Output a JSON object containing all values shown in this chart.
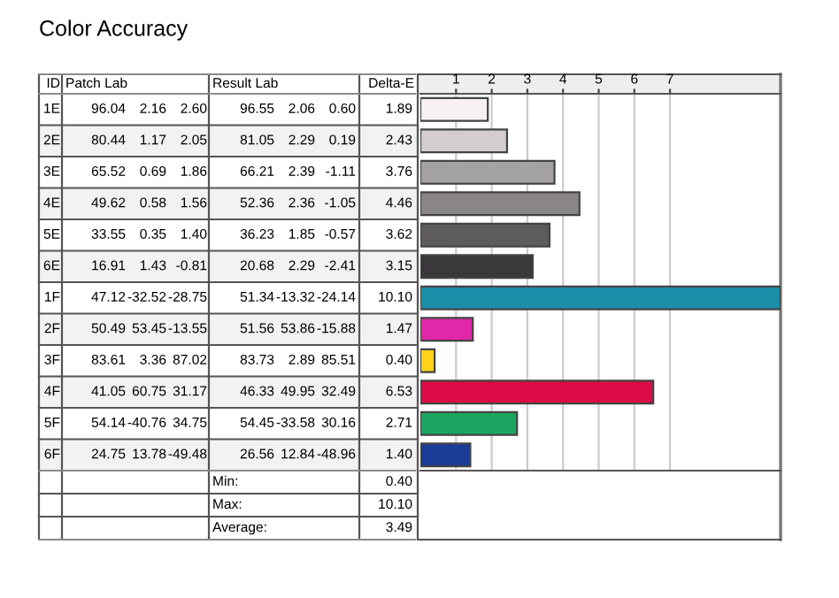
{
  "chart_data": {
    "type": "bar",
    "orientation": "horizontal",
    "title": "Color Accuracy",
    "categories": [
      "1E",
      "2E",
      "3E",
      "4E",
      "5E",
      "6E",
      "1F",
      "2F",
      "3F",
      "4F",
      "5F",
      "6F"
    ],
    "values": [
      1.89,
      2.43,
      3.76,
      4.46,
      3.62,
      3.15,
      10.1,
      1.47,
      0.4,
      6.53,
      2.71,
      1.4
    ],
    "value_labels": [
      "1.89",
      "2.43",
      "3.76",
      "4.46",
      "3.62",
      "3.15",
      "10.10",
      "1.47",
      "0.40",
      "6.53",
      "2.71",
      "1.40"
    ],
    "colors": [
      "#f7f0f3",
      "#d3cdcf",
      "#a5a2a4",
      "#8a8587",
      "#5d5b5c",
      "#3a383a",
      "#1a8fa8",
      "#e028a8",
      "#ffd21a",
      "#dc0a46",
      "#1aa660",
      "#1a3c96"
    ],
    "x2lim": [
      0,
      10.1
    ],
    "x2ticks": [
      1,
      2,
      3,
      4,
      5,
      6,
      7
    ],
    "grid": "x",
    "annotations": [
      "ID",
      "Patch Lab",
      "Result Lab",
      "Delta-E",
      "96.04 2.16 2.60",
      "96.55 2.06 0.60",
      "80.44 1.17 2.05",
      "81.05 2.29 0.19",
      "65.52 0.69 1.86",
      "66.21 2.39 -1.11",
      "49.62 0.58 1.56",
      "52.36 2.36 -1.05",
      "33.55 0.35 1.40",
      "36.23 1.85 -0.57",
      "16.91 1.43 -0.81",
      "20.68 2.29 -2.41",
      "47.12 -32.52 -28.75",
      "51.34 -13.32 -24.14",
      "50.49 53.45 -13.55",
      "51.56 53.86 -15.88",
      "83.61 3.36 87.02",
      "83.73 2.89 85.51",
      "41.05 60.75 31.17",
      "46.33 49.95 32.49",
      "54.14 -40.76 34.75",
      "54.45 -33.58 30.16",
      "24.75 13.78 -49.48",
      "26.56 12.84 -48.96",
      "Min:",
      "0.40",
      "Max:",
      "10.10",
      "Average:",
      "3.49"
    ]
  }
}
